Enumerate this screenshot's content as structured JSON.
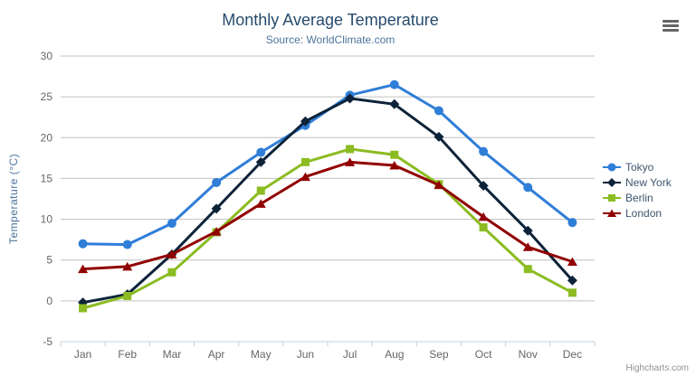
{
  "chart_data": {
    "type": "line",
    "title": "Monthly Average Temperature",
    "subtitle": "Source: WorldClimate.com",
    "categories": [
      "Jan",
      "Feb",
      "Mar",
      "Apr",
      "May",
      "Jun",
      "Jul",
      "Aug",
      "Sep",
      "Oct",
      "Nov",
      "Dec"
    ],
    "xlabel": "",
    "ylabel": "Temperature (°C)",
    "ylim": [
      -5,
      30
    ],
    "ytick_interval": 5,
    "grid": true,
    "legend_position": "right",
    "series": [
      {
        "name": "Tokyo",
        "color": "#2f7ed8",
        "marker": "circle",
        "values": [
          7.0,
          6.9,
          9.5,
          14.5,
          18.2,
          21.5,
          25.2,
          26.5,
          23.3,
          18.3,
          13.9,
          9.6
        ]
      },
      {
        "name": "New York",
        "color": "#0d233a",
        "marker": "diamond",
        "values": [
          -0.2,
          0.8,
          5.7,
          11.3,
          17.0,
          22.0,
          24.8,
          24.1,
          20.1,
          14.1,
          8.6,
          2.5
        ]
      },
      {
        "name": "Berlin",
        "color": "#8bbc21",
        "marker": "square",
        "values": [
          -0.9,
          0.6,
          3.5,
          8.4,
          13.5,
          17.0,
          18.6,
          17.9,
          14.3,
          9.0,
          3.9,
          1.0
        ]
      },
      {
        "name": "London",
        "color": "#910000",
        "marker": "triangle",
        "values": [
          3.9,
          4.2,
          5.7,
          8.5,
          11.9,
          15.2,
          17.0,
          16.6,
          14.2,
          10.3,
          6.6,
          4.8
        ]
      }
    ]
  },
  "export_button": {
    "icon": "hamburger-menu-icon"
  },
  "credits": {
    "label": "Highcharts.com"
  },
  "colors": {
    "title": "#274b6d",
    "subtitle": "#4d759e",
    "axis_title": "#4d759e",
    "axis_labels": "#666666",
    "grid": "#c0c0c0",
    "axis_line": "#c0d0e0",
    "legend_text": "#3e576f",
    "credits": "#909090",
    "background": "#ffffff"
  }
}
